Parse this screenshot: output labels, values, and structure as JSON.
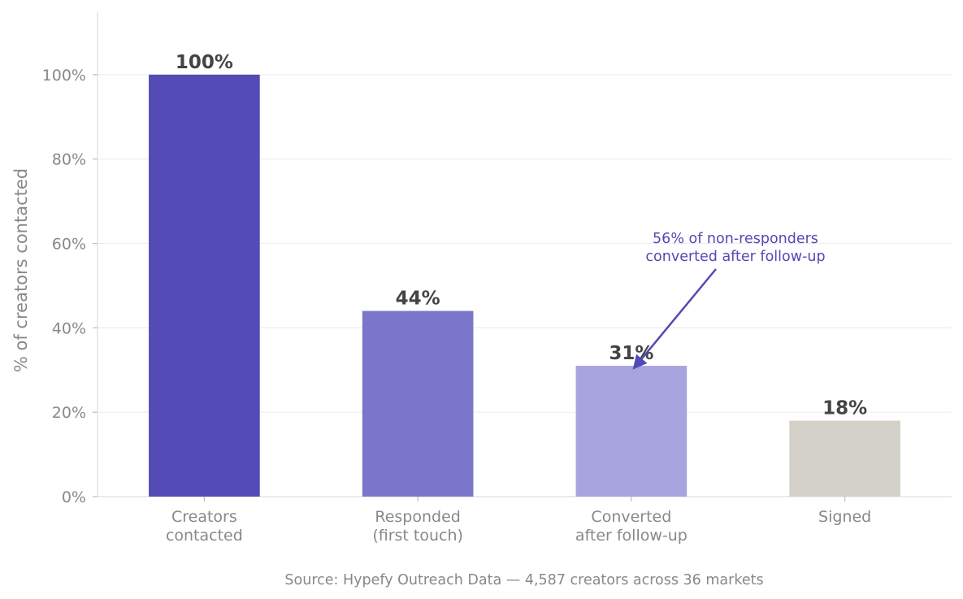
{
  "chart_data": {
    "type": "bar",
    "categories": [
      [
        "Creators",
        "contacted"
      ],
      [
        "Responded",
        "(first touch)"
      ],
      [
        "Converted",
        "after follow-up"
      ],
      [
        "Signed"
      ]
    ],
    "values": [
      100,
      44,
      31,
      18
    ],
    "data_labels": [
      "100%",
      "44%",
      "31%",
      "18%"
    ],
    "colors": [
      "#534bb6",
      "#7b76cc",
      "#a8a4df",
      "#d4d1c9"
    ],
    "ylabel": "% of creators contacted",
    "ylim": [
      0,
      115
    ],
    "yticks": [
      0,
      20,
      40,
      60,
      80,
      100
    ],
    "ytick_labels": [
      "0%",
      "20%",
      "40%",
      "60%",
      "80%",
      "100%"
    ],
    "grid": "horizontal",
    "annotation": {
      "lines": [
        "56% of non-responders",
        "converted after follow-up"
      ],
      "points_to_category": 2,
      "color": "#5349b6"
    },
    "source": "Source: Hypefy Outreach Data — 4,587 creators across 36 markets"
  }
}
